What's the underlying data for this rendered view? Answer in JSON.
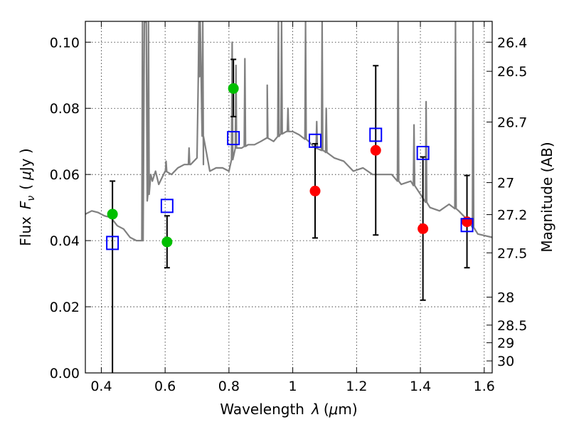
{
  "chart_data": {
    "type": "scatter",
    "xlabel_text": "Wavelength",
    "xlabel_symbol": "λ",
    "xlabel_unit_open": "(",
    "xlabel_unit_mu": "μ",
    "xlabel_unit_rest": "m)",
    "ylabel_text": "Flux",
    "ylabel_symbol": "F",
    "ylabel_sub": "ν",
    "ylabel_unit_open": "(",
    "ylabel_unit_mu": "μ",
    "ylabel_unit_rest": "Jy )",
    "y2label": "Magnitude (AB)",
    "xlim": [
      0.35,
      1.625
    ],
    "ylim": [
      0.0,
      0.1063
    ],
    "x_ticks": [
      0.4,
      0.6,
      0.8,
      1.0,
      1.2,
      1.4,
      1.6
    ],
    "x_tick_labels": [
      "0.4",
      "0.6",
      "0.8",
      "1",
      "1.2",
      "1.4",
      "1.6"
    ],
    "y_ticks": [
      0.0,
      0.02,
      0.04,
      0.06,
      0.08,
      0.1
    ],
    "y_tick_labels": [
      "0.00",
      "0.02",
      "0.04",
      "0.06",
      "0.08",
      "0.10"
    ],
    "y2_ticks": [
      26.4,
      26.5,
      26.7,
      27,
      27.2,
      27.5,
      28,
      28.5,
      29,
      30
    ],
    "y2_tick_labels": [
      "26.4",
      "26.5",
      "26.7",
      "27",
      "27.2",
      "27.5",
      "28",
      "28.5",
      "29",
      "30"
    ],
    "grid": true,
    "colors": {
      "model": "#808080",
      "green": "#00bf00",
      "red": "#ff0000",
      "squares": "#0000ff",
      "errorbar": "#000000"
    },
    "model_spectrum": {
      "x": [
        0.35,
        0.37,
        0.39,
        0.41,
        0.43,
        0.45,
        0.47,
        0.49,
        0.51,
        0.53,
        0.535,
        0.538,
        0.541,
        0.544,
        0.55,
        0.555,
        0.56,
        0.57,
        0.58,
        0.6,
        0.62,
        0.64,
        0.66,
        0.68,
        0.7,
        0.71,
        0.72,
        0.74,
        0.76,
        0.78,
        0.8,
        0.82,
        0.84,
        0.86,
        0.88,
        0.9,
        0.92,
        0.94,
        0.96,
        0.98,
        1.0,
        1.02,
        1.05,
        1.07,
        1.1,
        1.13,
        1.16,
        1.19,
        1.22,
        1.25,
        1.28,
        1.31,
        1.34,
        1.37,
        1.4,
        1.43,
        1.46,
        1.49,
        1.52,
        1.55,
        1.58,
        1.625
      ],
      "y": [
        0.048,
        0.049,
        0.0485,
        0.0475,
        0.047,
        0.0445,
        0.0435,
        0.041,
        0.04,
        0.04,
        0.106,
        0.106,
        0.106,
        0.052,
        0.055,
        0.06,
        0.058,
        0.061,
        0.057,
        0.061,
        0.06,
        0.062,
        0.063,
        0.063,
        0.065,
        0.106,
        0.063,
        0.061,
        0.062,
        0.062,
        0.061,
        0.068,
        0.068,
        0.069,
        0.069,
        0.07,
        0.071,
        0.07,
        0.072,
        0.073,
        0.073,
        0.072,
        0.07,
        0.068,
        0.067,
        0.065,
        0.064,
        0.061,
        0.062,
        0.06,
        0.06,
        0.06,
        0.057,
        0.058,
        0.054,
        0.05,
        0.049,
        0.051,
        0.049,
        0.046,
        0.042,
        0.041
      ]
    },
    "emission_lines": [
      {
        "x": 0.529,
        "peak": 0.106
      },
      {
        "x": 0.548,
        "peak": 0.106
      },
      {
        "x": 0.603,
        "peak": 0.064
      },
      {
        "x": 0.675,
        "peak": 0.068
      },
      {
        "x": 0.706,
        "peak": 0.106
      },
      {
        "x": 0.718,
        "peak": 0.106
      },
      {
        "x": 0.81,
        "peak": 0.1
      },
      {
        "x": 0.822,
        "peak": 0.093
      },
      {
        "x": 0.85,
        "peak": 0.095
      },
      {
        "x": 0.92,
        "peak": 0.087
      },
      {
        "x": 0.955,
        "peak": 0.106
      },
      {
        "x": 0.965,
        "peak": 0.106
      },
      {
        "x": 0.985,
        "peak": 0.08
      },
      {
        "x": 1.04,
        "peak": 0.106
      },
      {
        "x": 1.075,
        "peak": 0.076
      },
      {
        "x": 1.092,
        "peak": 0.106
      },
      {
        "x": 1.105,
        "peak": 0.08
      },
      {
        "x": 1.33,
        "peak": 0.106
      },
      {
        "x": 1.38,
        "peak": 0.075
      },
      {
        "x": 1.418,
        "peak": 0.082
      },
      {
        "x": 1.51,
        "peak": 0.106
      },
      {
        "x": 1.565,
        "peak": 0.106
      }
    ],
    "green_points": [
      {
        "x": 0.435,
        "y": 0.048,
        "err_lo": 0.0,
        "err_hi": 0.058
      },
      {
        "x": 0.606,
        "y": 0.0396,
        "err_lo": 0.0318,
        "err_hi": 0.0475
      },
      {
        "x": 0.814,
        "y": 0.086,
        "err_lo": 0.0775,
        "err_hi": 0.0948
      }
    ],
    "red_points": [
      {
        "x": 1.07,
        "y": 0.055,
        "err_lo": 0.0408,
        "err_hi": 0.0693
      },
      {
        "x": 1.26,
        "y": 0.0673,
        "err_lo": 0.0417,
        "err_hi": 0.0929
      },
      {
        "x": 1.408,
        "y": 0.0436,
        "err_lo": 0.022,
        "err_hi": 0.0653
      },
      {
        "x": 1.546,
        "y": 0.0457,
        "err_lo": 0.0318,
        "err_hi": 0.0597
      }
    ],
    "squares": [
      {
        "x": 0.435,
        "y": 0.0393
      },
      {
        "x": 0.606,
        "y": 0.0505
      },
      {
        "x": 0.814,
        "y": 0.071
      },
      {
        "x": 1.07,
        "y": 0.0702
      },
      {
        "x": 1.26,
        "y": 0.072
      },
      {
        "x": 1.408,
        "y": 0.0665
      },
      {
        "x": 1.546,
        "y": 0.0447
      }
    ]
  }
}
